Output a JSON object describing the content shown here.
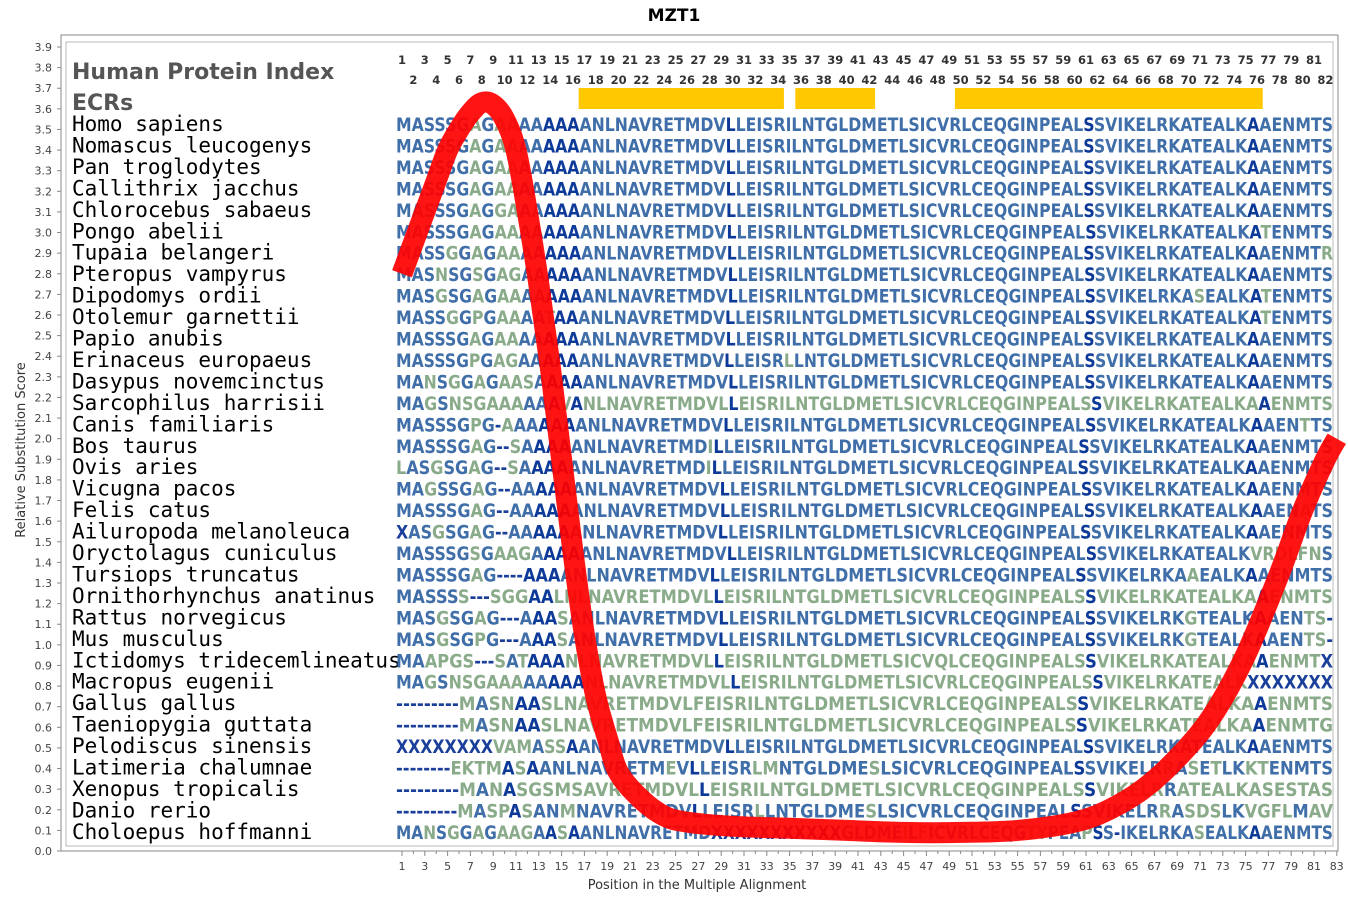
{
  "chart_data": {
    "type": "line",
    "title": "MZT1",
    "xlabel": "Position in the Multiple Alignment",
    "ylabel": "Relative Substitution Score",
    "xlim": [
      1,
      83
    ],
    "ylim": [
      0.0,
      3.9
    ],
    "y_ticks": [
      "0.0",
      "0.1",
      "0.2",
      "0.3",
      "0.4",
      "0.5",
      "0.6",
      "0.7",
      "0.8",
      "0.9",
      "1.0",
      "1.1",
      "1.2",
      "1.3",
      "1.4",
      "1.5",
      "1.6",
      "1.7",
      "1.8",
      "1.9",
      "2.0",
      "2.1",
      "2.2",
      "2.3",
      "2.4",
      "2.5",
      "2.6",
      "2.7",
      "2.8",
      "2.9",
      "3.0",
      "3.1",
      "3.2",
      "3.3",
      "3.4",
      "3.5",
      "3.6",
      "3.7",
      "3.8",
      "3.9"
    ],
    "x_ticks": [
      "1",
      "3",
      "5",
      "7",
      "9",
      "11",
      "13",
      "15",
      "17",
      "19",
      "21",
      "23",
      "25",
      "27",
      "29",
      "31",
      "33",
      "35",
      "37",
      "39",
      "41",
      "43",
      "45",
      "47",
      "49",
      "51",
      "53",
      "55",
      "57",
      "59",
      "61",
      "63",
      "65",
      "67",
      "69",
      "71",
      "73",
      "75",
      "77",
      "79",
      "81",
      "83"
    ],
    "series": [
      {
        "color": "#ff0000",
        "x": [
          1,
          2,
          3,
          4,
          5,
          6,
          7,
          8,
          9,
          10,
          11,
          12,
          13,
          14,
          15,
          16,
          17,
          18,
          19,
          20,
          22,
          24,
          26,
          30,
          35,
          40,
          45,
          50,
          55,
          60,
          63,
          66,
          69,
          72,
          75,
          78,
          80,
          82,
          83
        ],
        "y": [
          2.8,
          2.95,
          3.1,
          3.25,
          3.4,
          3.5,
          3.58,
          3.63,
          3.62,
          3.55,
          3.4,
          3.1,
          2.75,
          2.35,
          1.9,
          1.45,
          1.05,
          0.75,
          0.55,
          0.38,
          0.25,
          0.17,
          0.14,
          0.12,
          0.11,
          0.1,
          0.09,
          0.09,
          0.1,
          0.14,
          0.2,
          0.3,
          0.45,
          0.65,
          0.95,
          1.35,
          1.65,
          1.9,
          2.0
        ]
      }
    ],
    "ecr_regions": [
      [
        17,
        34
      ],
      [
        36,
        42
      ],
      [
        50,
        76
      ]
    ],
    "ecr_color": "#ffc800"
  },
  "panel": {
    "heading1": "Human Protein Index",
    "heading2": "ECRs",
    "pos_top": [
      "1",
      "3",
      "5",
      "7",
      "9",
      "11",
      "13",
      "15",
      "17",
      "19",
      "21",
      "23",
      "25",
      "27",
      "29",
      "31",
      "33",
      "35",
      "37",
      "39",
      "41",
      "43",
      "45",
      "47",
      "49",
      "51",
      "53",
      "55",
      "57",
      "59",
      "61",
      "63",
      "65",
      "67",
      "69",
      "71",
      "73",
      "75",
      "77",
      "79",
      "81"
    ],
    "pos_bottom": [
      "2",
      "4",
      "6",
      "8",
      "10",
      "12",
      "14",
      "16",
      "18",
      "20",
      "22",
      "24",
      "26",
      "28",
      "30",
      "32",
      "34",
      "36",
      "38",
      "40",
      "42",
      "44",
      "46",
      "48",
      "50",
      "52",
      "54",
      "56",
      "58",
      "60",
      "62",
      "64",
      "66",
      "68",
      "70",
      "72",
      "74",
      "76",
      "78",
      "80",
      "82"
    ],
    "rows": [
      {
        "species": "Homo sapiens",
        "seq": "MASSSGAGAAAAAAAANLNAVRETMDVLLEISRILNTGLDMETLSICVRLCEQGINPEALSSVIKELRKATEALKAAENMTS"
      },
      {
        "species": "Nomascus leucogenys",
        "seq": "MASSSGAGAAAAAAAANLNAVRETMDVLLEISRILNTGLDMETLSICVRLCEQGINPEALSSVIKELRKATEALKAAENMTS"
      },
      {
        "species": "Pan troglodytes",
        "seq": "MASSSGAGAAAAAAAANLNAVRETMDVLLEISRILNTGLDMETLSICVRLCEQGINPEALSSVIKELRKATEALKAAENMTS"
      },
      {
        "species": "Callithrix jacchus",
        "seq": "MASSSGAGAAAAAAAANLNAVRETMDVLLEISRILNTGLDMETLSICVRLCEQGINPEALSSVIKELRKATEALKAAENMTS"
      },
      {
        "species": "Chlorocebus sabaeus",
        "seq": "MASSSGAGGAAAAAAANLNAVRETMDVLLEISRILNTGLDMETLSICVRLCEQGINPEALSSVIKELRKATEALKAAENMTS"
      },
      {
        "species": "Pongo abelii",
        "seq": "MASSSGAGAAAAAAAANLNAVRETMDVLLEISRILNTGLDMETLSICVRLCEQGINPEALSSVIKELRKATEALKATENMTS"
      },
      {
        "species": "Tupaia belangeri",
        "seq": "MASSGGAGAAAAAAAANLNAVRETMDVLLEISRILNTGLDMETLSICVRLCEQGINPEALSSVIKELRKATEALKAAENMTR"
      },
      {
        "species": "Pteropus vampyrus",
        "seq": "MASNSGSGAGAAAAAANLNAVRETMDVLLEISRILNTGLDMETLSICVRLCEQGINPEALSSVIKELRKATEALKAAENMTS"
      },
      {
        "species": "Dipodomys ordii",
        "seq": "MASGSGAGAAAAAAAANLNAVRETMDVLLEISRILNTGLDMETLSICVRLCEQGINPEALSSVIKELRKASEALKATENMTS"
      },
      {
        "species": "Otolemur garnettii",
        "seq": "MASSGGPGAAAATAAANLNAVRETMDVLLEISRILNTGLDMETLSICVRLCEQGINPEALSSVIKELRKATEALKATENMTS"
      },
      {
        "species": "Papio anubis",
        "seq": "MASSSGAGAAAAAAAANLNAVRETMDVLLEISRILNTGLDMETLSICVRLCEQGINPEALSSVIKELRKATEALKAAENMTS"
      },
      {
        "species": "Erinaceus europaeus",
        "seq": "MASSSGPGAGAAAAAANLNAVRETMDVLLEISRLLNTGLDMETLSICVRLCEQGINPEALSSVIKELRKATEALKAAENMTS"
      },
      {
        "species": "Dasypus novemcinctus",
        "seq": "MANSGGAGAASAAAAANLNAVRETMDVLLEISRILNTGLDMETLSICVRLCEQGINPEALSSVIKELRKATEALKAAENMTS"
      },
      {
        "species": "Sarcophilus harrisii",
        "seq": "MAGSNSGAAAAAAVANLNAVRETMDVLLEISRILNTGLDMETLSICVRLCEQGINPEALSSVIKELRKATEALKAAENMTS"
      },
      {
        "species": "Canis familiaris",
        "seq": "MASSSGPG-AAAAAAANLNAVRETMDVLLEISRILNTGLDMETLSICVRLCEQGINPEALSSVIKELRKATEALKAAENTTS"
      },
      {
        "species": "Bos taurus",
        "seq": "MASSSGAG--SAAAAANLNAVRETMDILLEISRILNTGLDMETLSICVRLCEQGINPEALSSVIKELRKATEALKAAENMTS"
      },
      {
        "species": "Ovis aries",
        "seq": "LASGSGAG--SAAAAANLNAVRETMDILLEISRILNTGLDMETLSICVRLCEQGINPEALSSVIKELRKATEALKAAENMTS"
      },
      {
        "species": "Vicugna pacos",
        "seq": "MAGSSGAG--AAAAAANLNAVRETMDVLLEISRILNTGLDMETLSICVRLCEQGINPEALSSVIKELRKATEALKAAENMTS"
      },
      {
        "species": "Felis catus",
        "seq": "MASSSGAG--AAAAAANLNAVRETMDVLLEISRILNTGLDMETLSICVRLCEQGINPEALSSVIKELRKATEALKAAENATS"
      },
      {
        "species": "Ailuropoda melanoleuca",
        "seq": "XASGSGAG--AAAAAANLNAVRETMDVLLEISRILNTGLDMETLSICVRLCEQGINPEALSSVIKELRKATEALKAAENMTS"
      },
      {
        "species": "Oryctolagus cuniculus",
        "seq": "MASSSGSGAAGAAAAANLNAVRETMDVLLEISRILNTGLDMETLSICVRLCEQGINPEALSSVIKELRKATEALKVRDLFNS"
      },
      {
        "species": "Tursiops truncatus",
        "seq": "MASSSGAG----AAAANLNAVRETMDVLLEISRILNTGLDMETLSICVRLCEQGINPEALSSVIKELRKAAEALKAAENMTS"
      },
      {
        "species": "Ornithorhynchus anatinus",
        "seq": "MASSSS---SGGAALNLNAVRETMDVLLEISRILNTGLDMETLSICVRLCEQGINPEALSSVIKELRKATEALKAAENMTS"
      },
      {
        "species": "Rattus norvegicus",
        "seq": "MASGSGAG---AAASANLNAVRETMDVLLEISRILNTGLDMETLSICVRLCEQGINPEALSSVIKELRKGTEALKAAENTS-"
      },
      {
        "species": "Mus musculus",
        "seq": "MASGSGPG---AAASANLNAVRETMDVLLEISRILNTGLDMETLSICVRLCEQGINPEALSSVIKELRKGTEALKAAENTS-"
      },
      {
        "species": "Ictidomys tridecemlineatus",
        "seq": "MAAPGS---SATAAANLNAVRETMDVLLEISRILNTGLDMETLSICVQLCEQGINPEALSSVIKELRKATEALKAAENMTX"
      },
      {
        "species": "Macropus eugenii",
        "seq": "MAGSNSGAAAAAAAANLNAVRETMDVLLEISRILNTGLDMETLSICVRLCEQGINPEALSSVIKELRKATEALKXXXXXXX"
      },
      {
        "species": "Gallus gallus",
        "seq": "---------MASNAASLNAVRETMDVLFEISRILNTGLDMETLSICVRLCEQGINPEALSSVIKELRKATEALKAAENMTS"
      },
      {
        "species": "Taeniopygia guttata",
        "seq": "---------MASNAASLNAVRETMDVLFEISRILNTGLDMETLSICVRLCEQGINPEALSSVIKELRKATEALKAAENMTG"
      },
      {
        "species": "Pelodiscus sinensis",
        "seq": "XXXXXXXXVAMASSAANLNAVRETMDVLLEISRILNTGLDMETLSICVRLCEQGINPEALSSVIKELRKATEALKAAENMTS"
      },
      {
        "species": "Latimeria chalumnae",
        "seq": "--------EKTMASAANLNAVRETMEVLLEISRLMNTGLDMESLSICVRLCEQGINPEALSSVIKELRRASETLKKTENMTS"
      },
      {
        "species": "Xenopus tropicalis",
        "seq": "---------MANASGSMSAVRETMDVLLEISRILNTGLDMETLSICVRLCEQGINPEALSSVIKELRRATEALKASESTAS"
      },
      {
        "species": "Danio rerio",
        "seq": "---------MASPASANMNAVRETMDVLLEISRLLNTGLDMESLSICVRLCEQGINPEALSSVIKELRRASDSLKVGFLMAV"
      },
      {
        "species": "Choloepus hoffmanni",
        "seq": "MANSGGAGAAGAASAANLNAVRETMDXXXXXXXXXXXGLDMEILFICVRLCEQGTYPEAPSS-IKELRKASEALKAAENMTS"
      }
    ]
  },
  "colors": {
    "conserved": "#0d3a99",
    "mid": "#3f6ea8",
    "variable": "#8aab8a",
    "curve": "#ff0000",
    "ecr": "#ffc800"
  }
}
